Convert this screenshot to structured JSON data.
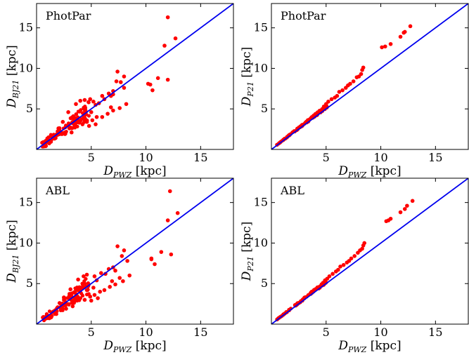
{
  "chart_data": [
    {
      "type": "scatter",
      "annotation": "PhotPar",
      "xlabel": {
        "main": "D",
        "sub": "PWZ",
        "unit": " [kpc]"
      },
      "ylabel": {
        "main": "D",
        "sub": "BJ21",
        "unit": " [kpc]"
      },
      "xlim": [
        0,
        18
      ],
      "ylim": [
        0,
        18
      ],
      "xticks": [
        5,
        10,
        15
      ],
      "yticks": [
        5,
        10,
        15
      ],
      "marker_color": "#ff0000",
      "line_color": "#0000ee",
      "reference_line": {
        "x": [
          0,
          18
        ],
        "y": [
          0,
          18
        ]
      },
      "points": [
        [
          12.0,
          16.3
        ],
        [
          12.7,
          13.7
        ],
        [
          11.7,
          12.8
        ],
        [
          12.0,
          8.6
        ],
        [
          11.1,
          8.8
        ],
        [
          10.4,
          8.0
        ],
        [
          10.2,
          8.1
        ],
        [
          10.6,
          7.3
        ],
        [
          8.0,
          9.0
        ],
        [
          7.7,
          8.3
        ],
        [
          7.4,
          9.6
        ],
        [
          7.3,
          8.4
        ],
        [
          7.0,
          6.8
        ],
        [
          6.8,
          6.6
        ],
        [
          6.6,
          6.9
        ],
        [
          6.2,
          6.2
        ],
        [
          6.0,
          6.6
        ],
        [
          5.7,
          5.7
        ],
        [
          5.4,
          5.5
        ],
        [
          5.2,
          5.9
        ],
        [
          4.9,
          6.2
        ],
        [
          4.4,
          6.1
        ],
        [
          4.0,
          6.0
        ],
        [
          3.6,
          5.6
        ],
        [
          4.4,
          4.2
        ],
        [
          5.0,
          4.6
        ],
        [
          5.5,
          4.0
        ],
        [
          5.1,
          3.6
        ],
        [
          4.6,
          3.4
        ],
        [
          4.2,
          3.1
        ],
        [
          3.9,
          3.3
        ],
        [
          3.5,
          2.9
        ],
        [
          2.9,
          4.6
        ],
        [
          3.3,
          3.9
        ],
        [
          3.0,
          2.6
        ],
        [
          6.0,
          4.0
        ],
        [
          6.5,
          4.4
        ],
        [
          7.0,
          4.8
        ],
        [
          7.6,
          5.1
        ],
        [
          8.2,
          5.6
        ],
        [
          7.0,
          7.2
        ],
        [
          8.0,
          7.6
        ],
        [
          6.8,
          5.2
        ],
        [
          4.8,
          2.9
        ],
        [
          5.4,
          3.1
        ],
        [
          2.4,
          3.4
        ],
        [
          2.0,
          2.6
        ],
        [
          3.2,
          2.1
        ],
        [
          2.6,
          1.9
        ]
      ],
      "trend_points": 110
    },
    {
      "type": "scatter",
      "annotation": "PhotPar",
      "xlabel": {
        "main": "D",
        "sub": "PWZ",
        "unit": " [kpc]"
      },
      "ylabel": {
        "main": "D",
        "sub": "P21",
        "unit": " [kpc]"
      },
      "xlim": [
        0,
        18
      ],
      "ylim": [
        0,
        18
      ],
      "xticks": [
        5,
        10,
        15
      ],
      "yticks": [
        5,
        10,
        15
      ],
      "marker_color": "#ff0000",
      "line_color": "#0000ee",
      "reference_line": {
        "x": [
          0,
          18
        ],
        "y": [
          0,
          18
        ]
      },
      "points": [
        [
          12.7,
          15.2
        ],
        [
          12.2,
          14.5
        ],
        [
          12.1,
          14.4
        ],
        [
          11.8,
          13.9
        ],
        [
          10.9,
          13.0
        ],
        [
          10.4,
          12.7
        ],
        [
          10.1,
          12.6
        ],
        [
          8.4,
          10.1
        ],
        [
          8.3,
          9.8
        ],
        [
          8.2,
          9.3
        ],
        [
          8.0,
          9.0
        ],
        [
          7.8,
          8.9
        ],
        [
          7.5,
          8.4
        ],
        [
          7.2,
          8.1
        ],
        [
          7.0,
          7.9
        ],
        [
          6.8,
          7.6
        ],
        [
          6.5,
          7.3
        ],
        [
          6.2,
          7.1
        ],
        [
          6.0,
          6.6
        ],
        [
          5.8,
          6.4
        ],
        [
          5.5,
          6.2
        ],
        [
          5.2,
          5.9
        ],
        [
          5.0,
          5.6
        ],
        [
          4.8,
          5.3
        ]
      ],
      "trend_points": 120
    },
    {
      "type": "scatter",
      "annotation": "ABL",
      "xlabel": {
        "main": "D",
        "sub": "PWZ",
        "unit": " [kpc]"
      },
      "ylabel": {
        "main": "D",
        "sub": "BJ21",
        "unit": " [kpc]"
      },
      "xlim": [
        0,
        18
      ],
      "ylim": [
        0,
        18
      ],
      "xticks": [
        5,
        10,
        15
      ],
      "yticks": [
        5,
        10,
        15
      ],
      "marker_color": "#ff0000",
      "line_color": "#0000ee",
      "reference_line": {
        "x": [
          0,
          18
        ],
        "y": [
          0,
          18
        ]
      },
      "points": [
        [
          12.2,
          16.4
        ],
        [
          12.9,
          13.7
        ],
        [
          12.0,
          12.8
        ],
        [
          12.3,
          8.6
        ],
        [
          11.4,
          8.9
        ],
        [
          10.5,
          8.0
        ],
        [
          10.8,
          7.4
        ],
        [
          10.5,
          8.1
        ],
        [
          7.4,
          9.6
        ],
        [
          8.0,
          9.1
        ],
        [
          7.8,
          8.4
        ],
        [
          8.3,
          7.8
        ],
        [
          8.5,
          6.0
        ],
        [
          7.6,
          5.7
        ],
        [
          7.2,
          6.6
        ],
        [
          7.0,
          7.0
        ],
        [
          6.6,
          6.8
        ],
        [
          6.3,
          6.2
        ],
        [
          5.9,
          6.3
        ],
        [
          5.5,
          5.4
        ],
        [
          5.3,
          5.9
        ],
        [
          4.6,
          6.1
        ],
        [
          4.3,
          5.9
        ],
        [
          3.8,
          5.5
        ],
        [
          4.6,
          4.2
        ],
        [
          5.2,
          4.5
        ],
        [
          5.8,
          4.0
        ],
        [
          5.3,
          3.6
        ],
        [
          4.9,
          3.4
        ],
        [
          4.4,
          3.0
        ],
        [
          4.0,
          3.2
        ],
        [
          3.7,
          2.9
        ],
        [
          3.1,
          4.3
        ],
        [
          3.4,
          3.9
        ],
        [
          6.2,
          4.2
        ],
        [
          6.7,
          4.6
        ],
        [
          7.2,
          4.9
        ],
        [
          7.9,
          5.3
        ],
        [
          6.9,
          5.3
        ],
        [
          5.0,
          2.9
        ],
        [
          5.6,
          3.2
        ],
        [
          2.5,
          3.3
        ],
        [
          2.1,
          2.6
        ],
        [
          3.3,
          2.2
        ],
        [
          2.7,
          1.9
        ]
      ],
      "trend_points": 110
    },
    {
      "type": "scatter",
      "annotation": "ABL",
      "xlabel": {
        "main": "D",
        "sub": "PWZ",
        "unit": " [kpc]"
      },
      "ylabel": {
        "main": "D",
        "sub": "P21",
        "unit": " [kpc]"
      },
      "xlim": [
        0,
        18
      ],
      "ylim": [
        0,
        18
      ],
      "xticks": [
        5,
        10,
        15
      ],
      "yticks": [
        5,
        10,
        15
      ],
      "marker_color": "#ff0000",
      "line_color": "#0000ee",
      "reference_line": {
        "x": [
          0,
          18
        ],
        "y": [
          0,
          18
        ]
      },
      "points": [
        [
          12.9,
          15.2
        ],
        [
          12.4,
          14.6
        ],
        [
          12.2,
          14.2
        ],
        [
          11.8,
          13.8
        ],
        [
          10.9,
          13.0
        ],
        [
          10.7,
          12.8
        ],
        [
          10.5,
          12.7
        ],
        [
          8.5,
          10.0
        ],
        [
          8.4,
          9.7
        ],
        [
          8.3,
          9.3
        ],
        [
          8.1,
          9.1
        ],
        [
          7.9,
          8.8
        ],
        [
          7.6,
          8.4
        ],
        [
          7.3,
          8.1
        ],
        [
          7.1,
          7.8
        ],
        [
          6.9,
          7.6
        ],
        [
          6.6,
          7.3
        ],
        [
          6.3,
          7.1
        ],
        [
          6.1,
          6.7
        ],
        [
          5.9,
          6.5
        ],
        [
          5.6,
          6.2
        ],
        [
          5.3,
          5.9
        ],
        [
          5.1,
          5.6
        ],
        [
          4.9,
          5.4
        ]
      ],
      "trend_points": 120
    }
  ]
}
